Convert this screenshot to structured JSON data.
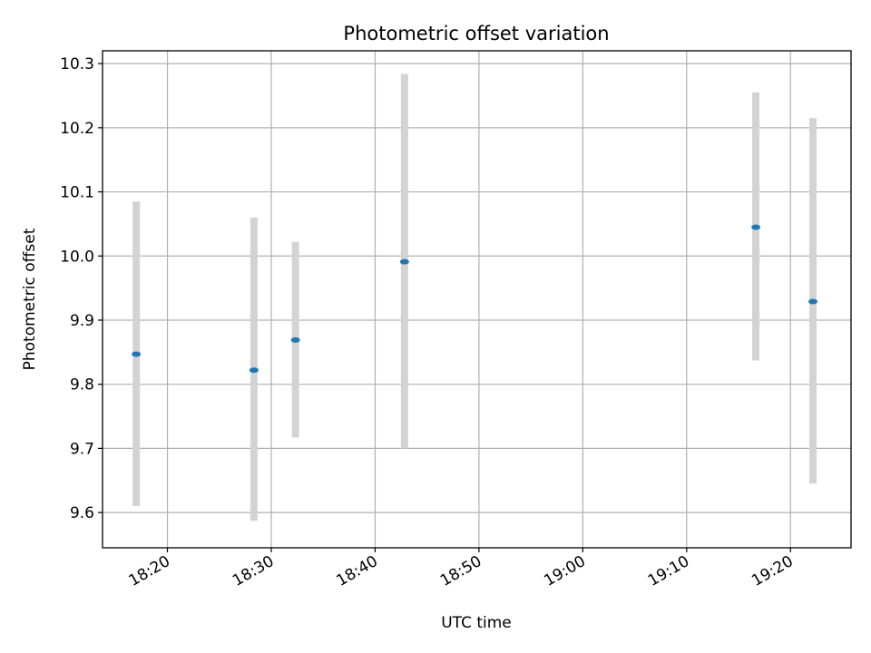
{
  "chart_data": {
    "type": "scatter",
    "title": "Photometric offset variation",
    "xlabel": "UTC time",
    "ylabel": "Photometric offset",
    "x_ticks": [
      "18:20",
      "18:30",
      "18:40",
      "18:50",
      "19:00",
      "19:10",
      "19:20"
    ],
    "y_ticks": [
      "9.6",
      "9.7",
      "9.8",
      "9.9",
      "10.0",
      "10.1",
      "10.2",
      "10.3"
    ],
    "xlim": [
      "18:13:45",
      "19:25:50"
    ],
    "ylim": [
      9.545,
      10.32
    ],
    "grid": true,
    "points": [
      {
        "time": "18:17:00",
        "value": 9.847,
        "err_low": 9.61,
        "err_high": 10.085
      },
      {
        "time": "18:28:20",
        "value": 9.822,
        "err_low": 9.587,
        "err_high": 10.06
      },
      {
        "time": "18:32:20",
        "value": 9.869,
        "err_low": 9.717,
        "err_high": 10.022
      },
      {
        "time": "18:42:50",
        "value": 9.991,
        "err_low": 9.7,
        "err_high": 10.284
      },
      {
        "time": "19:16:40",
        "value": 10.045,
        "err_low": 9.837,
        "err_high": 10.255
      },
      {
        "time": "19:22:10",
        "value": 9.929,
        "err_low": 9.645,
        "err_high": 10.215
      }
    ],
    "colors": {
      "point": "#1f77b4",
      "errorbar": "#d3d3d3",
      "grid": "#b0b0b0",
      "axes": "#000000"
    }
  }
}
